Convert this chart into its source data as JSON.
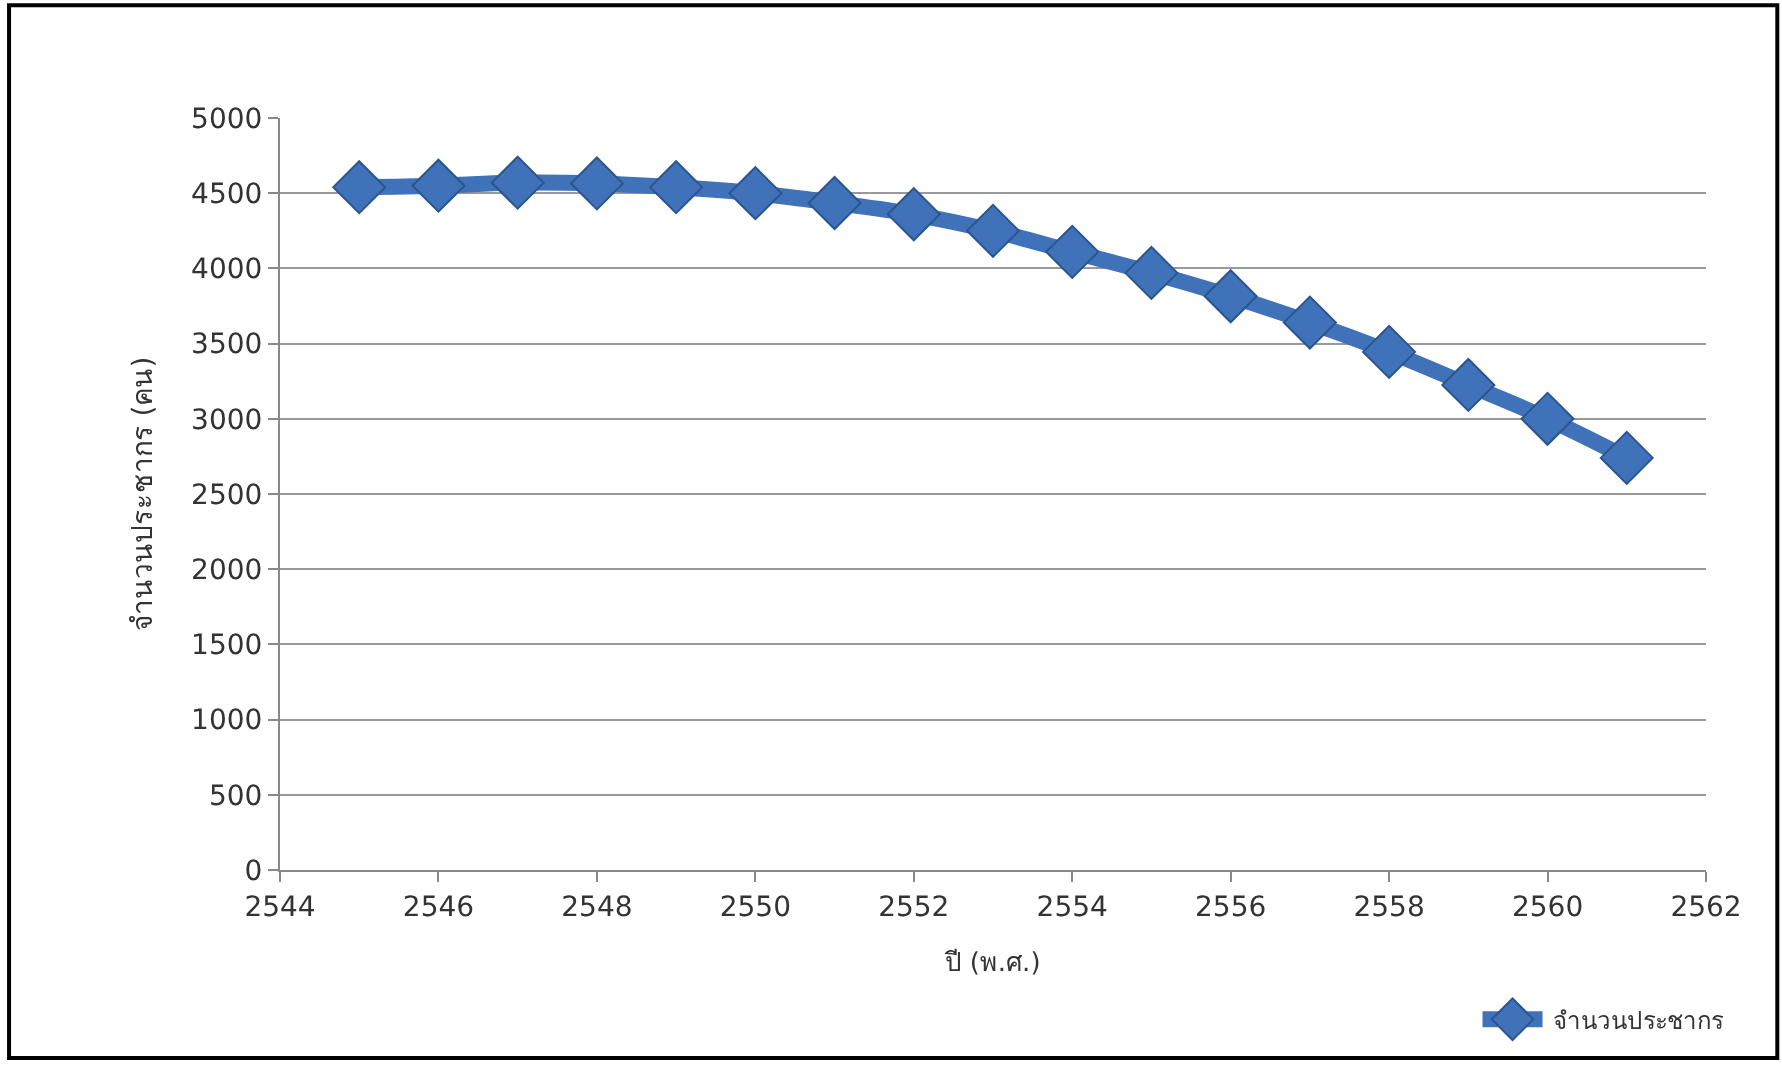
{
  "chart_data": {
    "type": "line",
    "xlabel": "ปี (พ.ศ.)",
    "ylabel": "จำนวนประชากร (คน)",
    "x": [
      2545,
      2546,
      2547,
      2548,
      2549,
      2550,
      2551,
      2552,
      2553,
      2554,
      2555,
      2556,
      2557,
      2558,
      2559,
      2560,
      2561
    ],
    "series": [
      {
        "name": "จำนวนประชากร",
        "color": "#3f72b8",
        "values": [
          4540,
          4550,
          4570,
          4565,
          4540,
          4500,
          4435,
          4360,
          4250,
          4110,
          3970,
          3815,
          3640,
          3445,
          3225,
          3000,
          2740
        ]
      }
    ],
    "xlim": [
      2544,
      2562
    ],
    "xticks": [
      2544,
      2546,
      2548,
      2550,
      2552,
      2554,
      2556,
      2558,
      2560,
      2562
    ],
    "ylim": [
      0,
      5000
    ],
    "yticks": [
      0,
      500,
      1000,
      1500,
      2000,
      2500,
      3000,
      3500,
      4000,
      4500,
      5000
    ],
    "grid": "y",
    "legend": "bottom right",
    "marker": "diamond",
    "line_style": "solid"
  }
}
